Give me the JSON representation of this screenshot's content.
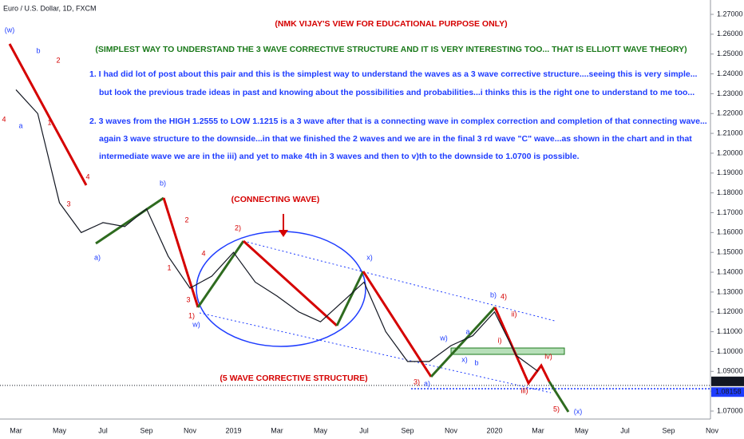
{
  "chart_data": {
    "type": "line",
    "symbol": "Euro / U.S. Dollar, 1D, FXCM",
    "annotations": [
      "(NMK VIJAY'S VIEW FOR EDUCATIONAL PURPOSE ONLY)",
      "(SIMPLEST WAY TO UNDERSTAND THE 3 WAVE CORRECTIVE STRUCTURE AND IT IS VERY INTERESTING TOO... THAT IS ELLIOTT WAVE THEORY)",
      "1. I had did lot of post about this pair and this is the simplest way to understand the waves as a 3 wave corrective structure....seeing this is very simple...",
      "but look the previous trade ideas in past and knowing about the possibilities and probabilities...i thinks this is the right one to understand to me too...",
      "2. 3 waves from the HIGH 1.2555 to LOW 1.1215 is a 3 wave after that is a connecting wave in complex correction and completion of that connecting wave...",
      "again 3 wave structure to the downside...in that we finished the 2 waves and we are in the final 3 rd wave \"C\" wave...as shown in the chart and in that",
      "intermediate wave we are in the iii) and yet to make 4th in 3 waves and then to v)th  to the downside to 1.0700 is possible.",
      "(CONNECTING WAVE)",
      "(5 WAVE CORRECTIVE STRUCTURE)"
    ],
    "wave_labels": [
      "(w)",
      "b",
      "2",
      "4",
      "a",
      "1",
      "4",
      "3",
      "a)",
      "b)",
      "2",
      "4",
      "1",
      "3",
      "1)",
      "w)",
      "2)",
      "x)",
      "w)",
      "a",
      "x)",
      "b",
      "b)",
      "4)",
      "ii)",
      "i)",
      "iv)",
      "iii)",
      "3)",
      "a)",
      "5)",
      "(x)"
    ],
    "categories": [
      "Mar",
      null,
      "May",
      null,
      "Jul",
      null,
      "Sep",
      null,
      "Nov",
      null,
      "2019",
      null,
      "Mar",
      null,
      "May",
      null,
      "Jul",
      null,
      "Sep",
      null,
      "Nov",
      null,
      "2020",
      null,
      "Mar",
      null,
      "May",
      null,
      "Jul",
      null,
      "Sep",
      null,
      "Nov"
    ],
    "series": [
      {
        "name": "EURUSD",
        "color": "#131722",
        "values": [
          1.232,
          1.22,
          1.175,
          1.16,
          1.165,
          1.163,
          1.172,
          1.148,
          1.132,
          1.138,
          1.15,
          1.135,
          1.128,
          1.12,
          1.115,
          1.125,
          1.135,
          1.11,
          1.095,
          1.095,
          1.103,
          1.108,
          1.12,
          1.098,
          1.09,
          null,
          null,
          null,
          null,
          null,
          null,
          null,
          null
        ]
      }
    ],
    "ylim": [
      1.068,
      1.277
    ],
    "yticks": [
      {
        "value": 1.07,
        "label": "1.07000"
      },
      {
        "value": 1.08,
        "label": "1.08000"
      },
      {
        "value": 1.09,
        "label": "1.09000"
      },
      {
        "value": 1.1,
        "label": "1.10000"
      },
      {
        "value": 1.11,
        "label": "1.11000"
      },
      {
        "value": 1.12,
        "label": "1.12000"
      },
      {
        "value": 1.13,
        "label": "1.13000"
      },
      {
        "value": 1.14,
        "label": "1.14000"
      },
      {
        "value": 1.15,
        "label": "1.15000"
      },
      {
        "value": 1.16,
        "label": "1.16000"
      },
      {
        "value": 1.17,
        "label": "1.17000"
      },
      {
        "value": 1.18,
        "label": "1.18000"
      },
      {
        "value": 1.19,
        "label": "1.19000"
      },
      {
        "value": 1.2,
        "label": "1.20000"
      },
      {
        "value": 1.21,
        "label": "1.21000"
      },
      {
        "value": 1.22,
        "label": "1.22000"
      },
      {
        "value": 1.23,
        "label": "1.23000"
      },
      {
        "value": 1.24,
        "label": "1.24000"
      },
      {
        "value": 1.25,
        "label": "1.25000"
      },
      {
        "value": 1.26,
        "label": "1.26000"
      },
      {
        "value": 1.27,
        "label": "1.27000"
      }
    ],
    "price_marks": [
      {
        "value": 1.08295,
        "label": "1.08295"
      },
      {
        "value": 1.08158,
        "label": "1.08158"
      }
    ]
  }
}
